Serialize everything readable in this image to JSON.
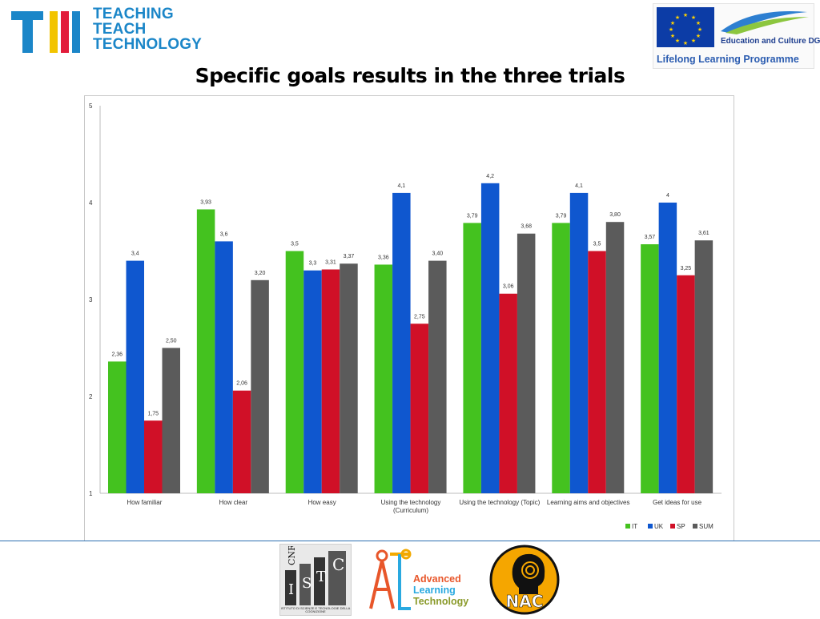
{
  "header": {
    "ttt_lines": [
      "TEACHING",
      "TEACH",
      "TECHNOLOGY"
    ],
    "eu_line1": "Education and Culture DG",
    "eu_line2": "Lifelong Learning Programme"
  },
  "title": "Specific goals results in the three trials",
  "colors": {
    "IT": "#44c21f",
    "UK": "#0f57cf",
    "SP": "#d01027",
    "SUM": "#5b5b5b",
    "brand": "#1b86c8"
  },
  "chart_data": {
    "type": "bar",
    "categories": [
      "How familiar",
      "How clear",
      "How easy",
      "Using the technology\n(Curriculum)",
      "Using the technology (Topic)",
      "Learning aims and objectives",
      "Get ideas for use"
    ],
    "series": [
      {
        "name": "IT",
        "values": [
          2.36,
          3.93,
          3.5,
          3.36,
          3.79,
          3.79,
          3.57
        ],
        "labels": [
          "2,36",
          "3,93",
          "3,5",
          "3,36",
          "3,79",
          "3,79",
          "3,57"
        ]
      },
      {
        "name": "UK",
        "values": [
          3.4,
          3.6,
          3.3,
          4.1,
          4.2,
          4.1,
          4.0
        ],
        "labels": [
          "3,4",
          "3,6",
          "3,3",
          "4,1",
          "4,2",
          "4,1",
          "4"
        ]
      },
      {
        "name": "SP",
        "values": [
          1.75,
          2.06,
          3.31,
          2.75,
          3.06,
          3.5,
          3.25
        ],
        "labels": [
          "1,75",
          "2,06",
          "3,31",
          "2,75",
          "3,06",
          "3,5",
          "3,25"
        ]
      },
      {
        "name": "SUM",
        "values": [
          2.5,
          3.2,
          3.37,
          3.4,
          3.68,
          3.8,
          3.61
        ],
        "labels": [
          "2,50",
          "3,20",
          "3,37",
          "3,40",
          "3,68",
          "3,80",
          "3,61"
        ]
      }
    ],
    "yticks": [
      "1",
      "2",
      "3",
      "4",
      "5"
    ],
    "ylim": [
      1,
      5
    ],
    "grid": false,
    "legend": "bottom-right"
  },
  "footer": {
    "cnr_top": "CNR",
    "cnr_caption": "ISTITUTO DI SCIENZE E TECNOLOGIE DELLA COGNIZIONE",
    "alt_lines": [
      "Advanced",
      "Learning",
      "Technology"
    ],
    "nac": "NAC"
  }
}
